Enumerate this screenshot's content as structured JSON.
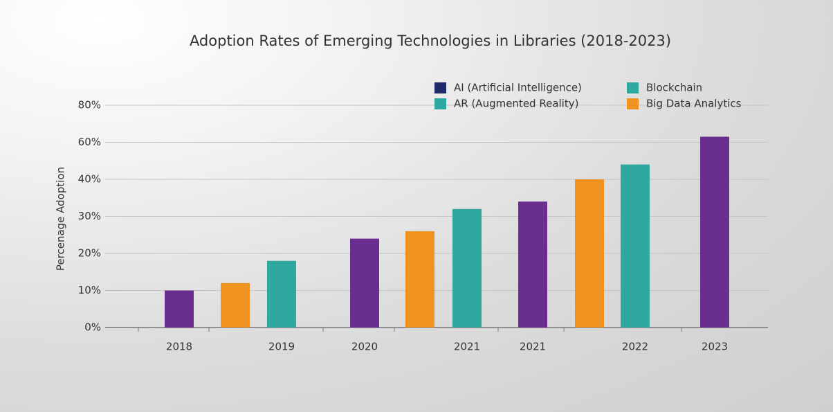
{
  "chart_data": {
    "type": "bar",
    "title": "Adoption Rates of Emerging Technologies in Libraries (2018-2023)",
    "y_label": "Percenage Adoption",
    "categories": [
      "2018",
      null,
      "2019",
      "2020",
      null,
      "2021",
      "2021",
      null,
      "2022",
      "2023"
    ],
    "values": [
      10,
      12,
      18,
      24,
      26,
      32,
      34,
      40,
      48,
      63
    ],
    "colors": [
      "#6a2f8e",
      "#f0921f",
      "#2fa9a0",
      "#6a2f8e",
      "#f0921f",
      "#2fa9a0",
      "#6a2f8e",
      "#f0921f",
      "#2fa9a0",
      "#6a2f8e"
    ],
    "legend": [
      {
        "name": "AI (Artificial Intelligence)",
        "color": "#1f2a6b"
      },
      {
        "name": "Blockchain",
        "color": "#2fa9a0"
      },
      {
        "name": "AR (Augmented Reality)",
        "color": "#2fa9a0"
      },
      {
        "name": "Big Data Analytics",
        "color": "#f0921f"
      }
    ],
    "ylim": [
      0,
      80
    ],
    "yticks": [
      {
        "value": 0,
        "label": "0%"
      },
      {
        "value": 10,
        "label": "10%"
      },
      {
        "value": 20,
        "label": "20%"
      },
      {
        "value": 30,
        "label": "30%"
      },
      {
        "value": 40,
        "label": "40%"
      },
      {
        "value": 60,
        "label": "60%"
      },
      {
        "value": 80,
        "label": "80%"
      }
    ],
    "grid": true
  }
}
